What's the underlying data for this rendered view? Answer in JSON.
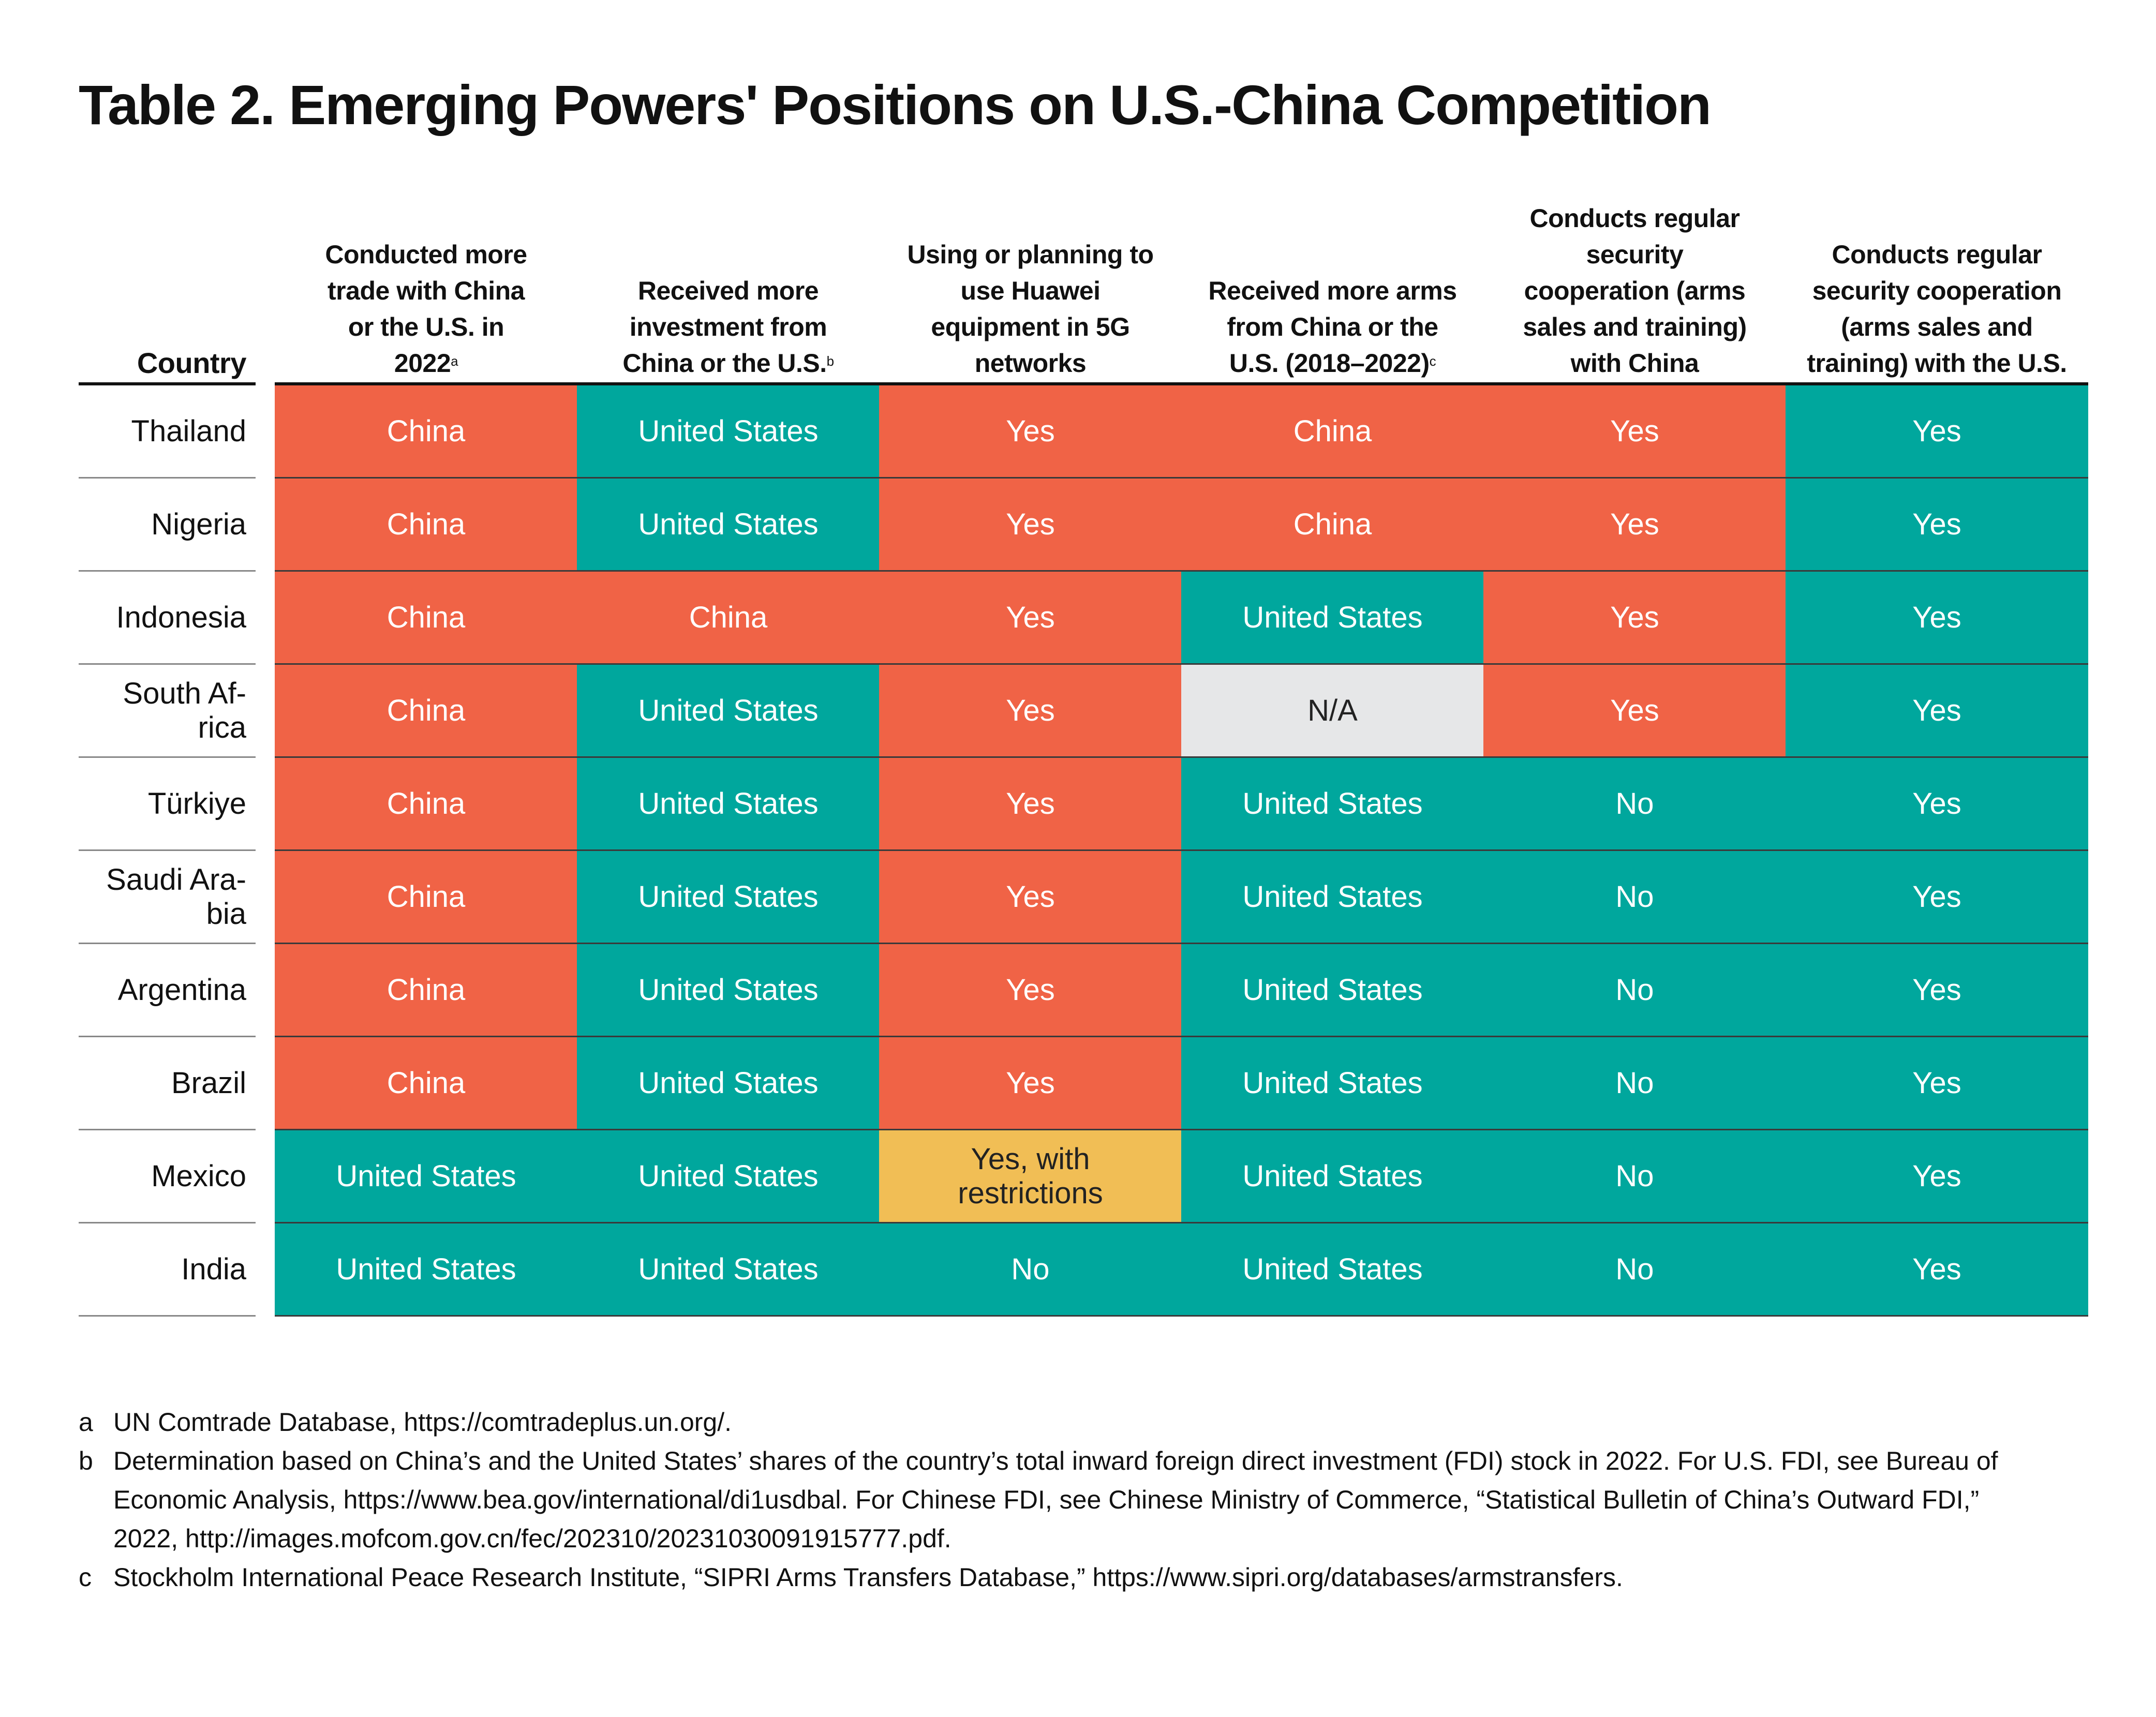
{
  "title": "Table 2. Emerging Powers' Positions on U.S.-China Competition",
  "headers": {
    "country": "Country",
    "columns": [
      {
        "label": "Conducted more trade with China or the U.S. in 2022",
        "note": "a"
      },
      {
        "label": "Received more investment from China or the U.S.",
        "note": "b"
      },
      {
        "label": "Using or planning to use Huawei equipment in 5G networks",
        "note": ""
      },
      {
        "label": "Received more arms from China or the U.S. (2018–2022)",
        "note": "c"
      },
      {
        "label": "Conducts regular security cooperation (arms sales  and training) with China",
        "note": ""
      },
      {
        "label": "Conducts regular security cooperation (arms sales and training) with the U.S.",
        "note": ""
      }
    ]
  },
  "rows": [
    {
      "country": "Thailand",
      "values": [
        "China",
        "United States",
        "Yes",
        "China",
        "Yes",
        "Yes"
      ]
    },
    {
      "country": "Nigeria",
      "values": [
        "China",
        "United States",
        "Yes",
        "China",
        "Yes",
        "Yes"
      ]
    },
    {
      "country": "Indonesia",
      "values": [
        "China",
        "China",
        "Yes",
        "United States",
        "Yes",
        "Yes"
      ]
    },
    {
      "country": "South Af-rica",
      "values": [
        "China",
        "United States",
        "Yes",
        "N/A",
        "Yes",
        "Yes"
      ]
    },
    {
      "country": "Türkiye",
      "values": [
        "China",
        "United States",
        "Yes",
        "United States",
        "No",
        "Yes"
      ]
    },
    {
      "country": "Saudi Ara-bia",
      "values": [
        "China",
        "United States",
        "Yes",
        "United States",
        "No",
        "Yes"
      ]
    },
    {
      "country": "Argentina",
      "values": [
        "China",
        "United States",
        "Yes",
        "United States",
        "No",
        "Yes"
      ]
    },
    {
      "country": "Brazil",
      "values": [
        "China",
        "United States",
        "Yes",
        "United States",
        "No",
        "Yes"
      ]
    },
    {
      "country": "Mexico",
      "values": [
        "United States",
        "United States",
        "Yes, with restrictions",
        "United States",
        "No",
        "Yes"
      ]
    },
    {
      "country": "India",
      "values": [
        "United States",
        "United States",
        "No",
        "United States",
        "No",
        "Yes"
      ]
    }
  ],
  "cell_colors": {
    "china_or_yes_china_aligned": "#F06346",
    "us_aligned": "#00A79D",
    "restricted": "#F1BE55",
    "not_available": "#E6E7E8"
  },
  "footnotes": [
    {
      "label": "a",
      "text": "UN Comtrade Database, https://comtradeplus.un.org/."
    },
    {
      "label": "b",
      "text": "Determination based on China’s and the United States’ shares of the country’s total inward foreign direct investment (FDI) stock in 2022. For U.S. FDI, see Bureau of Economic   Analysis, https://www.bea.gov/international/di1usdbal. For Chinese FDI, see Chinese Ministry of Commerce, “Statistical Bulletin of China’s Outward FDI,” 2022, http://images.mofcom.gov.cn/fec/202310/20231030091915777.pdf."
    },
    {
      "label": "c",
      "text": "Stockholm International Peace Research Institute, “SIPRI Arms Transfers Database,” https://www.sipri.org/databases/armstransfers."
    }
  ]
}
